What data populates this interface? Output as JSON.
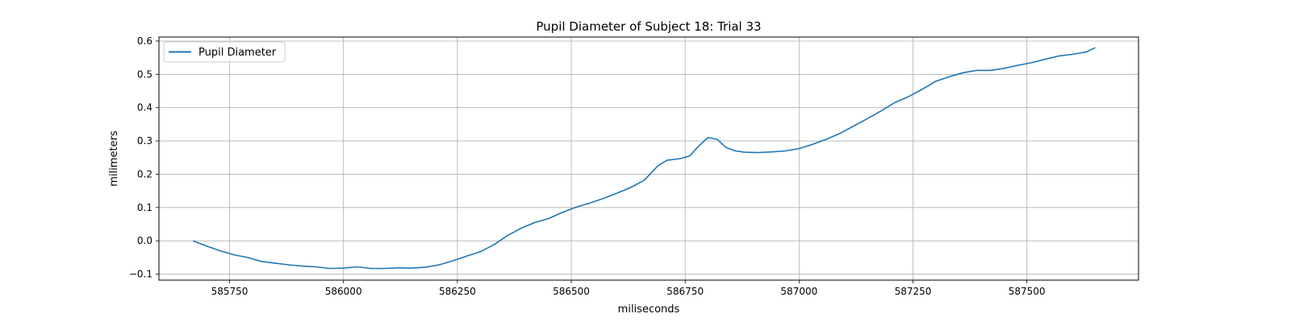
{
  "chart_data": {
    "type": "line",
    "title": "Pupil Diameter of Subject 18: Trial 33",
    "xlabel": "miliseconds",
    "ylabel": "milimeters",
    "xlim": [
      585595,
      587745
    ],
    "ylim": [
      -0.118,
      0.612
    ],
    "grid": true,
    "legend_position": "upper-left",
    "line_color": "#1f77b4",
    "x_ticks": [
      585750,
      586000,
      586250,
      586500,
      586750,
      587000,
      587250,
      587500
    ],
    "y_ticks": [
      -0.1,
      0.0,
      0.1,
      0.2,
      0.3,
      0.4,
      0.5,
      0.6
    ],
    "x_tick_labels": [
      "585750",
      "586000",
      "586250",
      "586500",
      "586750",
      "587000",
      "587250",
      "587500"
    ],
    "y_tick_labels": [
      "−0.1",
      "0.0",
      "0.1",
      "0.2",
      "0.3",
      "0.4",
      "0.5",
      "0.6"
    ],
    "series": [
      {
        "name": "Pupil Diameter",
        "x": [
          585670,
          585700,
          585730,
          585760,
          585790,
          585820,
          585850,
          585880,
          585910,
          585940,
          585970,
          586000,
          586030,
          586060,
          586090,
          586120,
          586150,
          586180,
          586210,
          586240,
          586270,
          586300,
          586330,
          586360,
          586390,
          586420,
          586450,
          586480,
          586510,
          586540,
          586570,
          586600,
          586630,
          586660,
          586690,
          586710,
          586740,
          586760,
          586780,
          586800,
          586820,
          586840,
          586860,
          586880,
          586910,
          586940,
          586970,
          587000,
          587030,
          587060,
          587090,
          587120,
          587150,
          587180,
          587210,
          587240,
          587270,
          587300,
          587330,
          587360,
          587390,
          587420,
          587450,
          587480,
          587510,
          587540,
          587570,
          587600,
          587630,
          587650
        ],
        "y": [
          0.0,
          -0.016,
          -0.03,
          -0.042,
          -0.05,
          -0.062,
          -0.067,
          -0.072,
          -0.076,
          -0.078,
          -0.083,
          -0.082,
          -0.078,
          -0.083,
          -0.083,
          -0.081,
          -0.082,
          -0.079,
          -0.072,
          -0.06,
          -0.046,
          -0.033,
          -0.012,
          0.016,
          0.038,
          0.055,
          0.067,
          0.085,
          0.101,
          0.113,
          0.127,
          0.143,
          0.16,
          0.182,
          0.225,
          0.242,
          0.247,
          0.255,
          0.285,
          0.31,
          0.305,
          0.28,
          0.27,
          0.266,
          0.265,
          0.267,
          0.27,
          0.277,
          0.29,
          0.305,
          0.323,
          0.345,
          0.367,
          0.39,
          0.415,
          0.433,
          0.455,
          0.479,
          0.493,
          0.505,
          0.512,
          0.512,
          0.518,
          0.527,
          0.535,
          0.545,
          0.555,
          0.56,
          0.567,
          0.58
        ]
      }
    ]
  }
}
